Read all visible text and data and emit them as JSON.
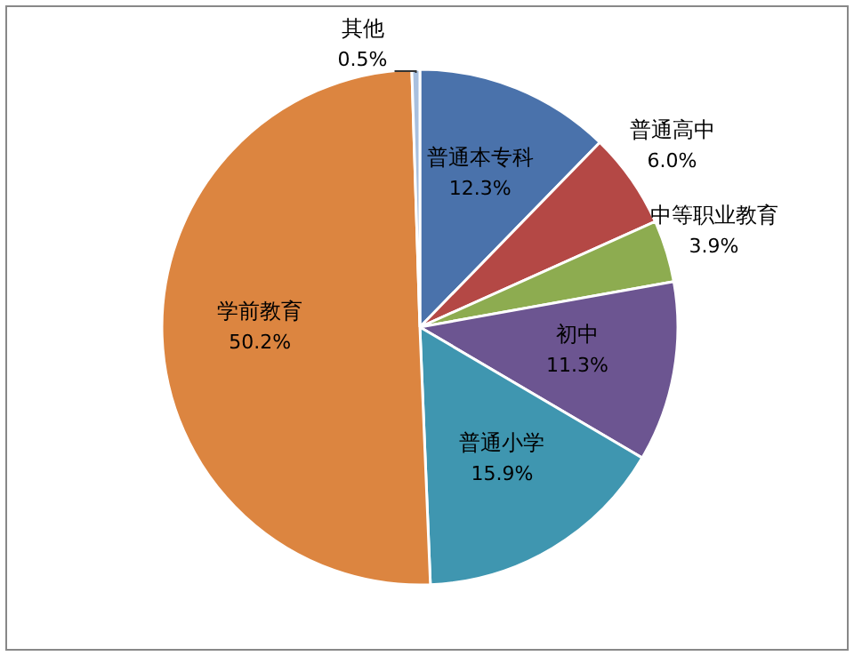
{
  "chart_data": {
    "type": "pie",
    "categories": [
      "普通本专科",
      "普通高中",
      "中等职业教育",
      "初中",
      "普通小学",
      "学前教育",
      "其他"
    ],
    "values": [
      12.3,
      6.0,
      3.9,
      11.3,
      15.9,
      50.2,
      0.5
    ],
    "colors": [
      "#4a72ab",
      "#b44845",
      "#8dac50",
      "#6c5591",
      "#3f96b0",
      "#dc8540",
      "#a9c0de"
    ],
    "value_labels": [
      "12.3%",
      "6.0%",
      "3.9%",
      "11.3%",
      "15.9%",
      "50.2%",
      "0.5%"
    ]
  }
}
